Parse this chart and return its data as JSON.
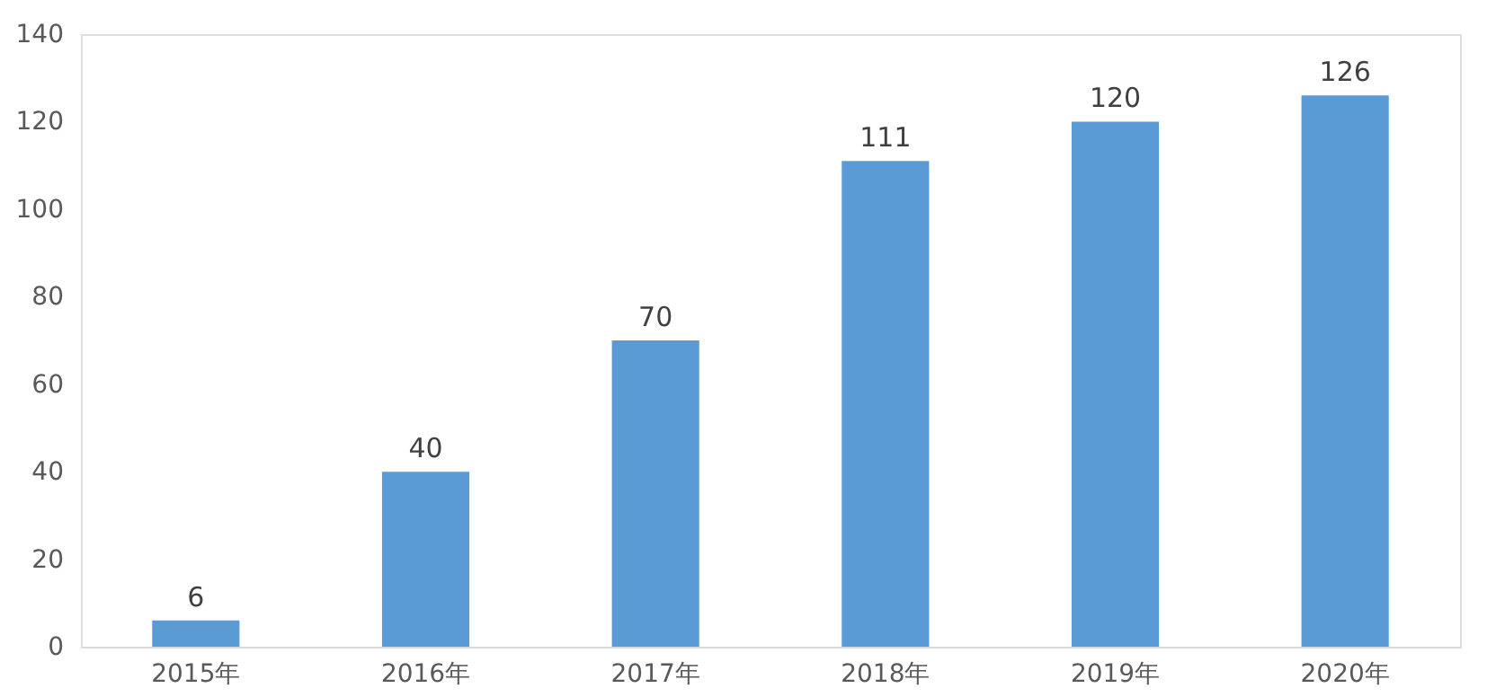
{
  "chart_data": {
    "type": "bar",
    "categories": [
      "2015年",
      "2016年",
      "2017年",
      "2018年",
      "2019年",
      "2020年"
    ],
    "values": [
      6,
      40,
      70,
      111,
      120,
      126
    ],
    "color": "#5b9bd5",
    "ylim": [
      0,
      140
    ],
    "yticks": [
      0,
      20,
      40,
      60,
      80,
      100,
      120,
      140
    ],
    "grid": false,
    "data_labels": true
  }
}
